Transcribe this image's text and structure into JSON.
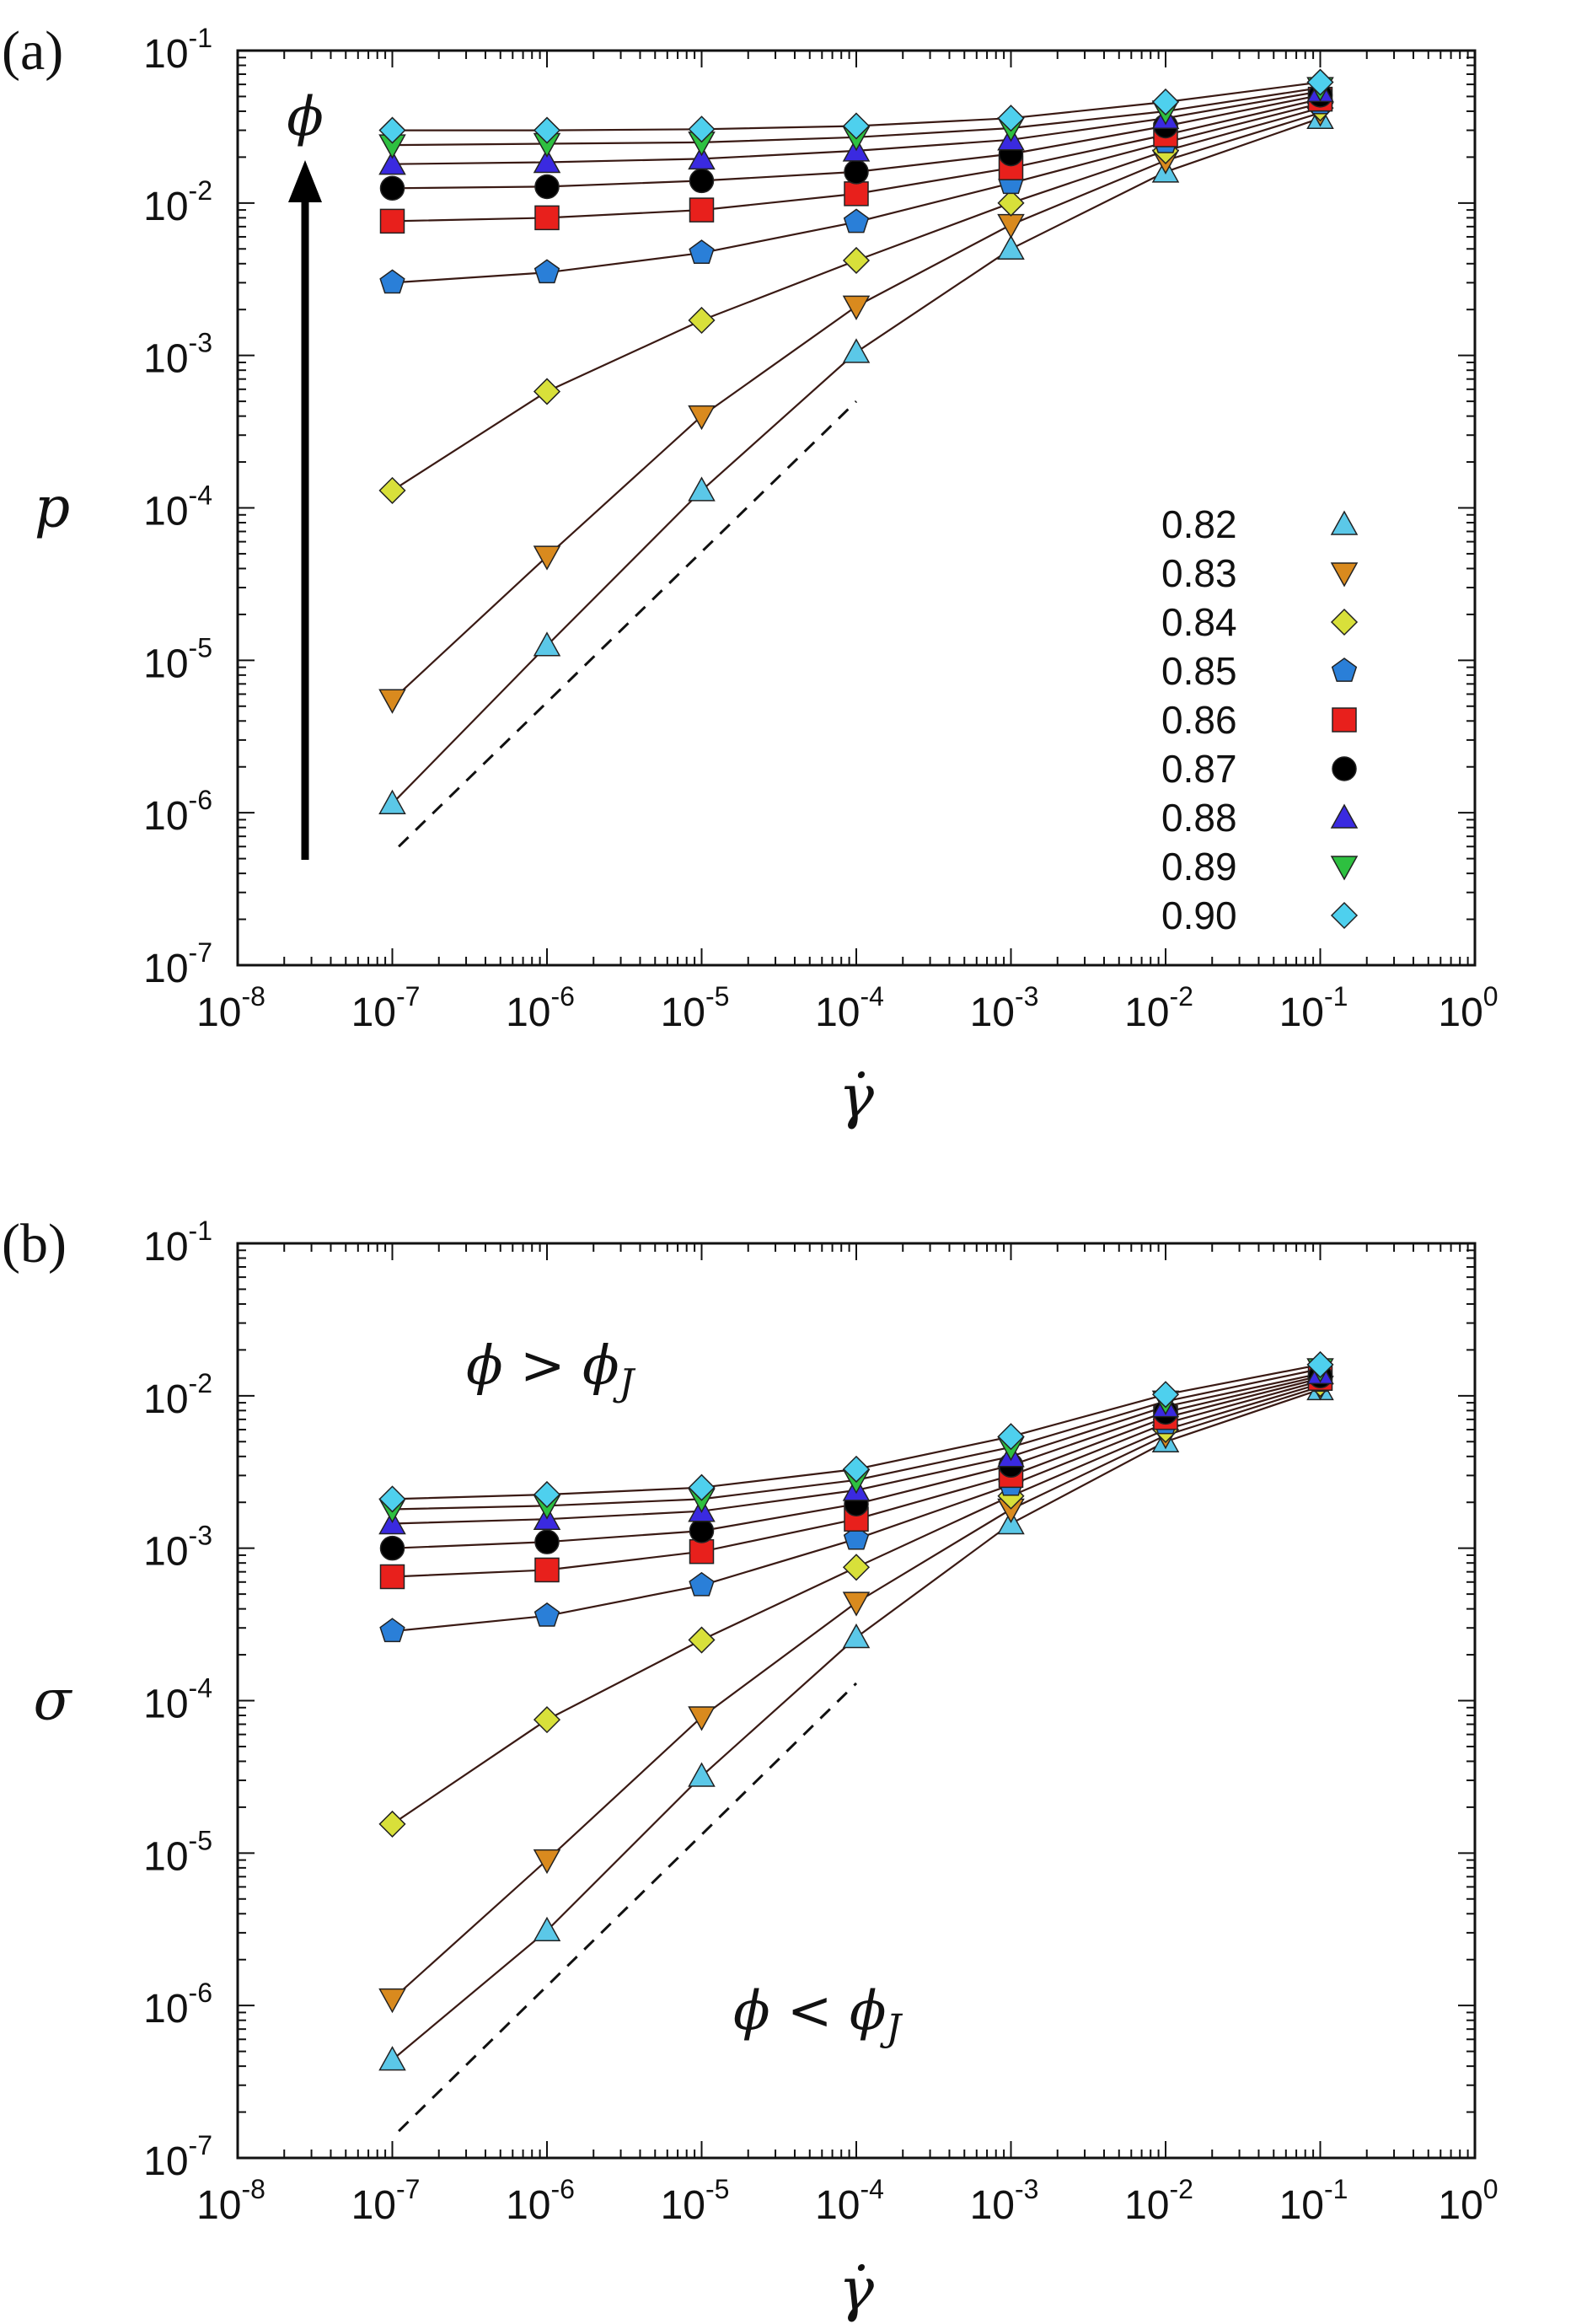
{
  "chart_data": [
    {
      "type": "line",
      "panel_label": "(a)",
      "ylabel": "p",
      "xlabel": "γ̇",
      "xscale": "log",
      "yscale": "log",
      "xlim": [
        1e-08,
        1
      ],
      "ylim": [
        1e-07,
        0.1
      ],
      "x_tick_base": "10",
      "x_tick_exponents": [
        "-8",
        "-7",
        "-6",
        "-5",
        "-4",
        "-3",
        "-2",
        "-1",
        "0"
      ],
      "y_tick_base": "10",
      "y_tick_exponents": [
        "-7",
        "-6",
        "-5",
        "-4",
        "-3",
        "-2",
        "-1"
      ],
      "x": [
        1e-07,
        1e-06,
        1e-05,
        0.0001,
        0.001,
        0.01,
        0.1
      ],
      "legend_placement": "bottom-right",
      "arrow_label": "ϕ",
      "series": [
        {
          "name": "0.82",
          "marker": "triangle-up",
          "color": "#5bc8e8",
          "values": [
            1.15e-06,
            1.25e-05,
            0.00013,
            0.00105,
            0.005,
            0.016,
            0.036
          ]
        },
        {
          "name": "0.83",
          "marker": "triangle-down",
          "color": "#d98a1e",
          "values": [
            5.5e-06,
            4.8e-05,
            0.0004,
            0.0021,
            0.0072,
            0.019,
            0.039
          ]
        },
        {
          "name": "0.84",
          "marker": "diamond",
          "color": "#d8e03a",
          "values": [
            0.00013,
            0.00058,
            0.0017,
            0.0042,
            0.01,
            0.022,
            0.042
          ]
        },
        {
          "name": "0.85",
          "marker": "pentagon",
          "color": "#2a7fd8",
          "values": [
            0.003,
            0.0035,
            0.0047,
            0.0075,
            0.0135,
            0.025,
            0.045
          ]
        },
        {
          "name": "0.86",
          "marker": "square",
          "color": "#e8201c",
          "values": [
            0.0076,
            0.008,
            0.009,
            0.0115,
            0.017,
            0.028,
            0.048
          ]
        },
        {
          "name": "0.87",
          "marker": "circle",
          "color": "#000000",
          "values": [
            0.0125,
            0.0128,
            0.014,
            0.016,
            0.021,
            0.032,
            0.051
          ]
        },
        {
          "name": "0.88",
          "marker": "triangle-up",
          "color": "#3a2ae0",
          "values": [
            0.018,
            0.0185,
            0.0195,
            0.022,
            0.026,
            0.036,
            0.054
          ]
        },
        {
          "name": "0.89",
          "marker": "triangle-down",
          "color": "#2ec040",
          "values": [
            0.024,
            0.0245,
            0.025,
            0.027,
            0.031,
            0.04,
            0.057
          ]
        },
        {
          "name": "0.90",
          "marker": "diamond",
          "color": "#4ed0ee",
          "values": [
            0.03,
            0.03,
            0.0305,
            0.032,
            0.036,
            0.046,
            0.062
          ]
        }
      ],
      "reference_line": {
        "style": "dashed",
        "x": [
          1.1e-07,
          0.0001
        ],
        "y": [
          6e-07,
          0.0005
        ]
      }
    },
    {
      "type": "line",
      "panel_label": "(b)",
      "ylabel": "σ",
      "xlabel": "γ̇",
      "xscale": "log",
      "yscale": "log",
      "xlim": [
        1e-08,
        1
      ],
      "ylim": [
        1e-07,
        0.1
      ],
      "x_tick_base": "10",
      "x_tick_exponents": [
        "-8",
        "-7",
        "-6",
        "-5",
        "-4",
        "-3",
        "-2",
        "-1",
        "0"
      ],
      "y_tick_base": "10",
      "y_tick_exponents": [
        "-7",
        "-6",
        "-5",
        "-4",
        "-3",
        "-2",
        "-1"
      ],
      "x": [
        1e-07,
        1e-06,
        1e-05,
        0.0001,
        0.001,
        0.01,
        0.1
      ],
      "annotations": [
        {
          "text_main": "ϕ > ϕ",
          "text_sub": "J",
          "x": 3e-07,
          "y": 0.012
        },
        {
          "text_main": "ϕ < ϕ",
          "text_sub": "J",
          "x": 1.6e-05,
          "y": 7e-07
        }
      ],
      "series": [
        {
          "name": "0.82",
          "marker": "triangle-up",
          "color": "#5bc8e8",
          "values": [
            4.4e-07,
            3.1e-06,
            3.2e-05,
            0.00026,
            0.00145,
            0.005,
            0.011
          ]
        },
        {
          "name": "0.83",
          "marker": "triangle-down",
          "color": "#d98a1e",
          "values": [
            1.1e-06,
            9e-06,
            7.8e-05,
            0.00044,
            0.0018,
            0.0055,
            0.0115
          ]
        },
        {
          "name": "0.84",
          "marker": "diamond",
          "color": "#d8e03a",
          "values": [
            1.55e-05,
            7.5e-05,
            0.00025,
            0.00075,
            0.0022,
            0.006,
            0.012
          ]
        },
        {
          "name": "0.85",
          "marker": "pentagon",
          "color": "#2a7fd8",
          "values": [
            0.000285,
            0.00036,
            0.00057,
            0.00115,
            0.0026,
            0.0066,
            0.0125
          ]
        },
        {
          "name": "0.86",
          "marker": "square",
          "color": "#e8201c",
          "values": [
            0.00065,
            0.00072,
            0.00095,
            0.00155,
            0.003,
            0.0072,
            0.013
          ]
        },
        {
          "name": "0.87",
          "marker": "circle",
          "color": "#000000",
          "values": [
            0.001,
            0.0011,
            0.0013,
            0.00195,
            0.0035,
            0.0078,
            0.0135
          ]
        },
        {
          "name": "0.88",
          "marker": "triangle-up",
          "color": "#3a2ae0",
          "values": [
            0.00145,
            0.00155,
            0.00175,
            0.0024,
            0.004,
            0.0085,
            0.014
          ]
        },
        {
          "name": "0.89",
          "marker": "triangle-down",
          "color": "#2ec040",
          "values": [
            0.0018,
            0.0019,
            0.0021,
            0.0028,
            0.0046,
            0.0092,
            0.015
          ]
        },
        {
          "name": "0.90",
          "marker": "diamond",
          "color": "#4ed0ee",
          "values": [
            0.0021,
            0.00225,
            0.0025,
            0.0033,
            0.0054,
            0.0102,
            0.016
          ]
        }
      ],
      "reference_line": {
        "style": "dashed",
        "x": [
          1.1e-07,
          0.0001
        ],
        "y": [
          1.5e-07,
          0.00013
        ]
      }
    }
  ]
}
